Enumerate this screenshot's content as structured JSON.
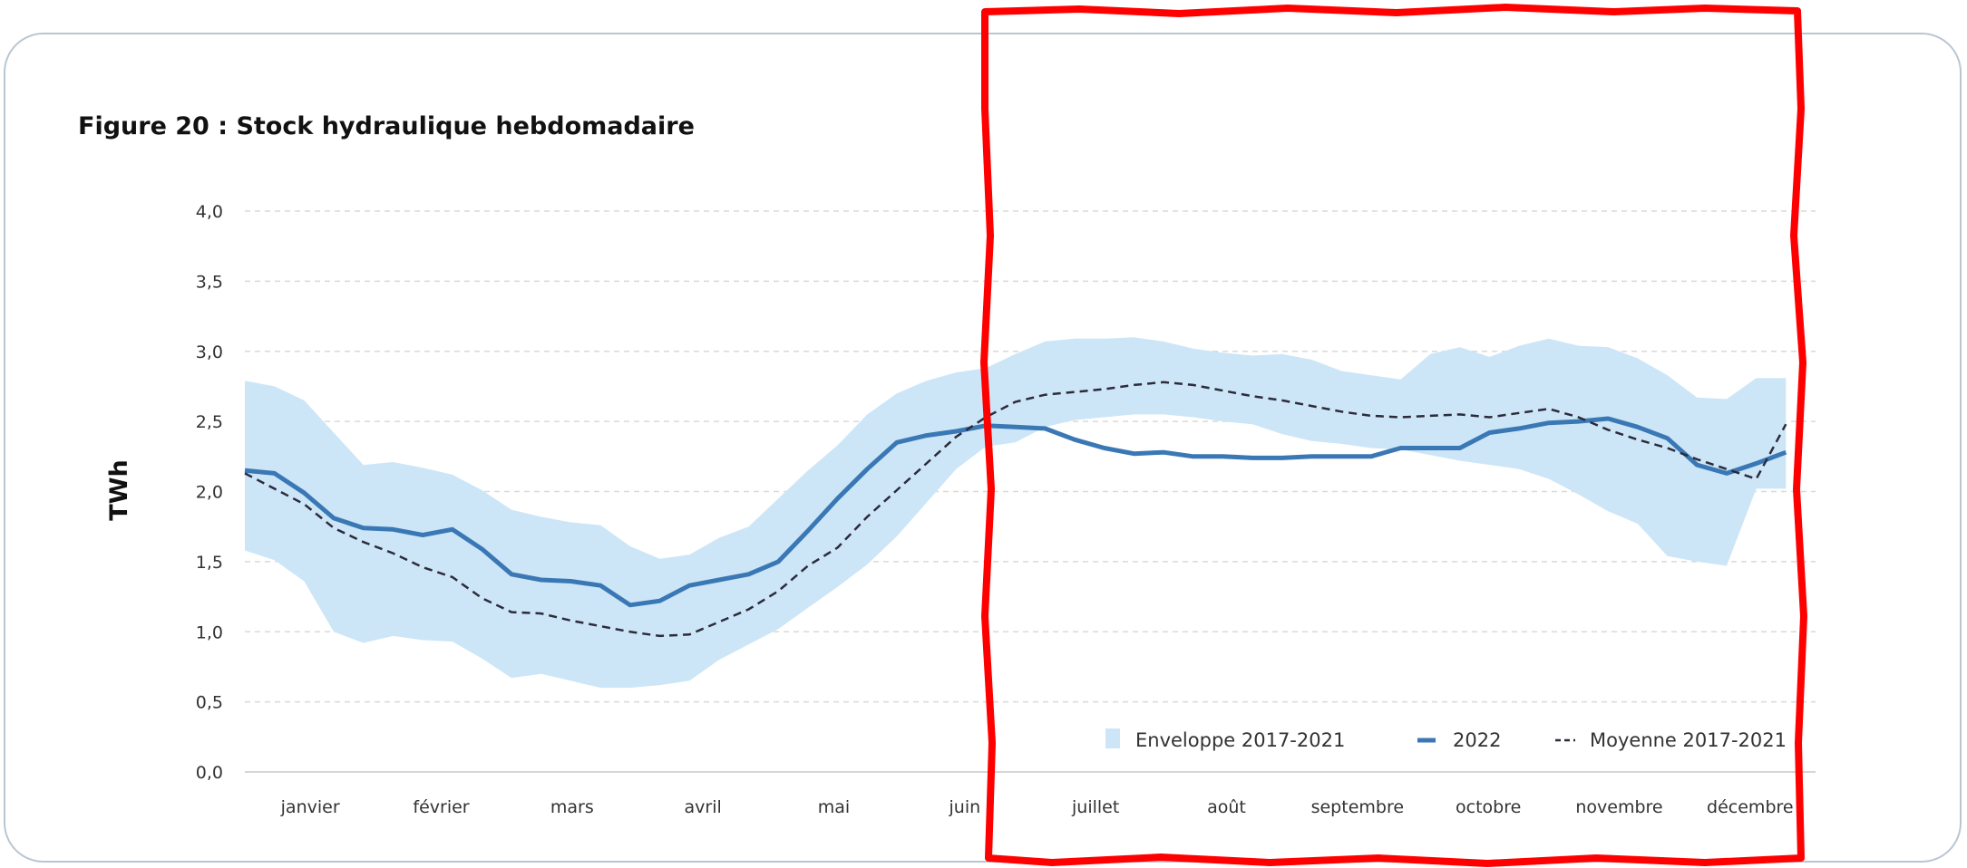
{
  "chart_data": {
    "type": "area",
    "title": "Figure 20 : Stock hydraulique hebdomadaire",
    "ylabel": "TWh",
    "xlabel": "",
    "ylim": [
      0,
      4
    ],
    "yticks": [
      "0,0",
      "0,5",
      "1,0",
      "1,5",
      "2,0",
      "2,5",
      "3,0",
      "3,5",
      "4,0"
    ],
    "ytick_values": [
      0,
      0.5,
      1,
      1.5,
      2,
      2.5,
      3,
      3.5,
      4
    ],
    "months": [
      "janvier",
      "février",
      "mars",
      "avril",
      "mai",
      "juin",
      "juillet",
      "août",
      "septembre",
      "octobre",
      "novembre",
      "décembre"
    ],
    "xlim": [
      0,
      53
    ],
    "x_unit": "semaine",
    "grid": "horizontal-dashed",
    "legend_position": "bottom-right",
    "colors": {
      "envelope": "#cde6f7",
      "line_2022": "#3a78b5",
      "mean": "#2b2b3b",
      "grid": "#d9d9d9",
      "highlight": "#ff0000"
    },
    "series": [
      {
        "name": "Enveloppe 2017-2021",
        "kind": "band",
        "x": [
          0,
          1,
          2,
          3,
          4,
          5,
          6,
          7,
          8,
          9,
          10,
          11,
          12,
          13,
          14,
          15,
          16,
          17,
          18,
          19,
          20,
          21,
          22,
          23,
          24,
          25,
          26,
          27,
          28,
          29,
          30,
          31,
          32,
          33,
          34,
          35,
          36,
          37,
          38,
          39,
          40,
          41,
          42,
          43,
          44,
          45,
          46,
          47,
          48,
          49,
          50,
          51,
          52
        ],
        "upper": [
          2.79,
          2.75,
          2.65,
          2.42,
          2.19,
          2.21,
          2.17,
          2.12,
          2.01,
          1.87,
          1.82,
          1.78,
          1.76,
          1.61,
          1.52,
          1.55,
          1.67,
          1.75,
          1.95,
          2.15,
          2.33,
          2.55,
          2.7,
          2.79,
          2.85,
          2.88,
          2.98,
          3.07,
          3.09,
          3.09,
          3.1,
          3.07,
          3.02,
          2.99,
          2.97,
          2.98,
          2.94,
          2.86,
          2.83,
          2.8,
          2.98,
          3.03,
          2.96,
          3.04,
          3.09,
          3.04,
          3.03,
          2.95,
          2.83,
          2.67,
          2.66,
          2.81,
          2.81
        ],
        "lower": [
          1.58,
          1.51,
          1.36,
          1.0,
          0.92,
          0.97,
          0.94,
          0.93,
          0.81,
          0.67,
          0.7,
          0.65,
          0.6,
          0.6,
          0.62,
          0.65,
          0.8,
          0.91,
          1.02,
          1.17,
          1.32,
          1.48,
          1.68,
          1.92,
          2.16,
          2.32,
          2.35,
          2.46,
          2.51,
          2.53,
          2.55,
          2.55,
          2.53,
          2.5,
          2.48,
          2.41,
          2.36,
          2.34,
          2.31,
          2.3,
          2.26,
          2.22,
          2.19,
          2.16,
          2.09,
          1.98,
          1.86,
          1.77,
          1.54,
          1.5,
          1.47,
          2.02,
          2.02
        ]
      },
      {
        "name": "2022",
        "kind": "line",
        "x": [
          0,
          1,
          2,
          3,
          4,
          5,
          6,
          7,
          8,
          9,
          10,
          11,
          12,
          13,
          14,
          15,
          16,
          17,
          18,
          19,
          20,
          21,
          22,
          23,
          24,
          25,
          26,
          27,
          28,
          29,
          30,
          31,
          32,
          33,
          34,
          35,
          36,
          37,
          38,
          39,
          40,
          41,
          42,
          43,
          44,
          45,
          46,
          47,
          48,
          49,
          50,
          51,
          52
        ],
        "values": [
          2.15,
          2.13,
          1.99,
          1.81,
          1.74,
          1.73,
          1.69,
          1.73,
          1.59,
          1.41,
          1.37,
          1.36,
          1.33,
          1.19,
          1.22,
          1.33,
          1.37,
          1.41,
          1.5,
          1.72,
          1.95,
          2.16,
          2.35,
          2.4,
          2.43,
          2.47,
          2.46,
          2.45,
          2.37,
          2.31,
          2.27,
          2.28,
          2.25,
          2.25,
          2.24,
          2.24,
          2.25,
          2.25,
          2.25,
          2.31,
          2.31,
          2.31,
          2.42,
          2.45,
          2.49,
          2.5,
          2.52,
          2.46,
          2.38,
          2.19,
          2.13,
          2.2,
          2.28
        ]
      },
      {
        "name": "Moyenne 2017-2021",
        "kind": "dashed-line",
        "x": [
          0,
          1,
          2,
          3,
          4,
          5,
          6,
          7,
          8,
          9,
          10,
          11,
          12,
          13,
          14,
          15,
          16,
          17,
          18,
          19,
          20,
          21,
          22,
          23,
          24,
          25,
          26,
          27,
          28,
          29,
          30,
          31,
          32,
          33,
          34,
          35,
          36,
          37,
          38,
          39,
          40,
          41,
          42,
          43,
          44,
          45,
          46,
          47,
          48,
          49,
          50,
          51,
          52
        ],
        "values": [
          2.13,
          2.02,
          1.91,
          1.74,
          1.64,
          1.56,
          1.46,
          1.39,
          1.24,
          1.14,
          1.13,
          1.08,
          1.04,
          1.0,
          0.97,
          0.98,
          1.07,
          1.16,
          1.29,
          1.47,
          1.6,
          1.82,
          2.01,
          2.2,
          2.39,
          2.53,
          2.64,
          2.69,
          2.71,
          2.73,
          2.76,
          2.78,
          2.76,
          2.72,
          2.68,
          2.65,
          2.61,
          2.57,
          2.54,
          2.53,
          2.54,
          2.55,
          2.53,
          2.56,
          2.59,
          2.53,
          2.44,
          2.37,
          2.31,
          2.23,
          2.16,
          2.09,
          2.48
        ]
      }
    ]
  }
}
